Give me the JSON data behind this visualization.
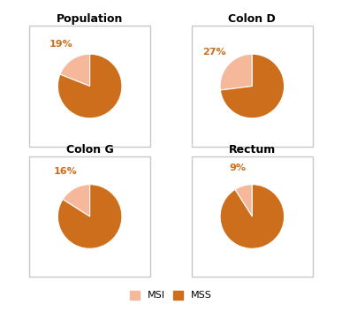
{
  "charts": [
    {
      "title": "Population",
      "msi": 19,
      "mss": 81
    },
    {
      "title": "Colon D",
      "msi": 27,
      "mss": 73
    },
    {
      "title": "Colon G",
      "msi": 16,
      "mss": 84
    },
    {
      "title": "Rectum",
      "msi": 9,
      "mss": 91
    }
  ],
  "color_msi": "#F5B89B",
  "color_mss": "#CD6E1C",
  "legend_labels": [
    "MSI",
    "MSS"
  ],
  "background": "#ffffff",
  "border_color": "#c8c8c8",
  "title_fontsize": 9,
  "pct_fontsize": 8,
  "legend_fontsize": 8,
  "startangle": 90
}
